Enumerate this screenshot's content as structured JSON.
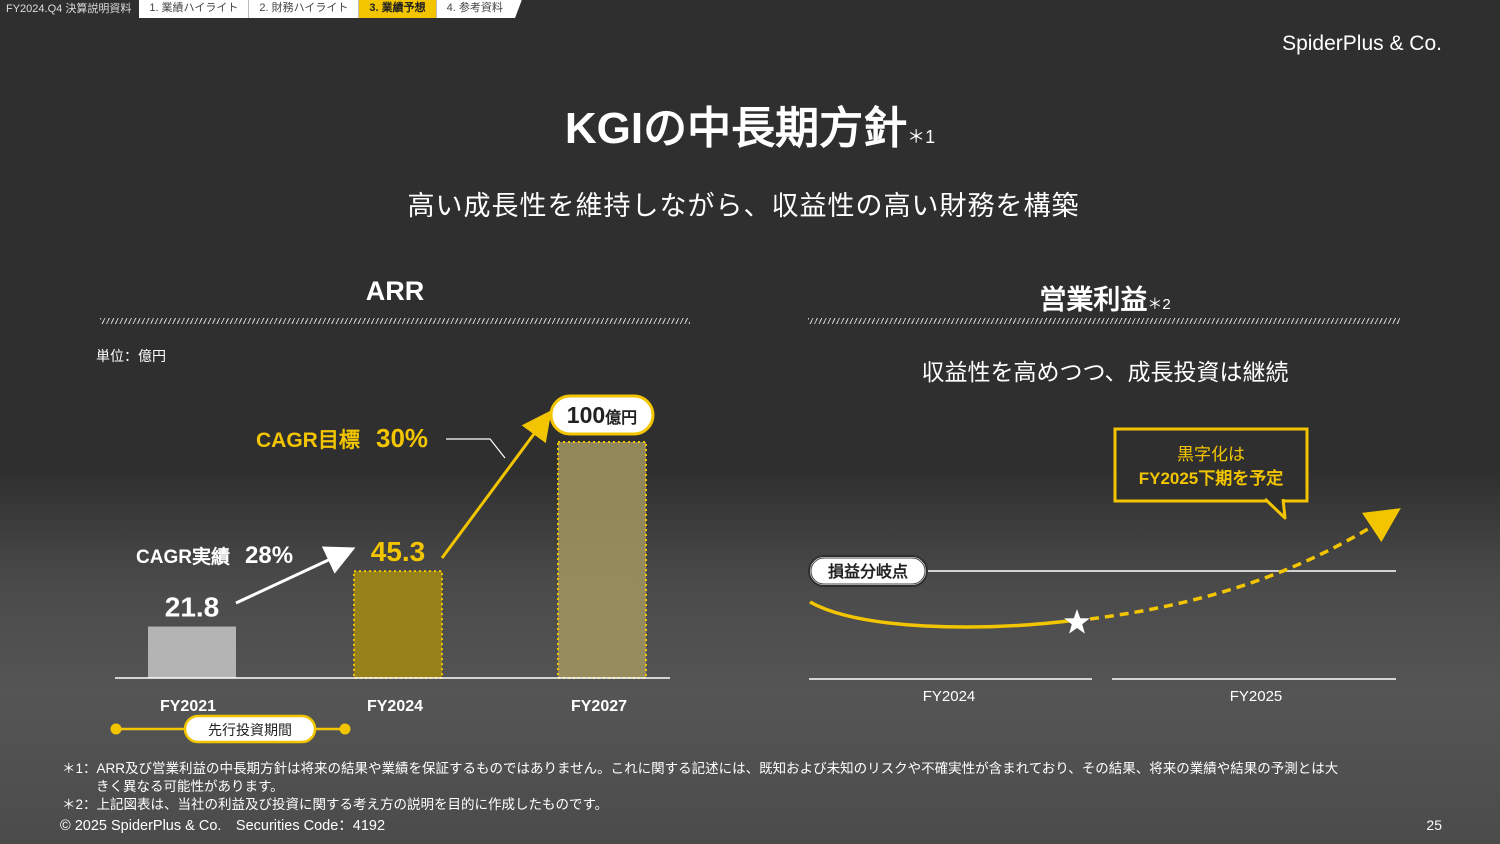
{
  "topbar": {
    "doc_label": "FY2024.Q4 決算説明資料",
    "tabs": [
      "1. 業績ハイライト",
      "2. 財務ハイライト",
      "3. 業績予想",
      "4. 参考資料"
    ],
    "active_tab": 2
  },
  "logo": "SpiderPlus & Co.",
  "title": {
    "main": "KGIの中長期方針",
    "sup": "＊1"
  },
  "subtitle": "高い成長性を維持しながら、収益性の高い財務を構築",
  "arr": {
    "title": "ARR",
    "unit": "単位：億円",
    "cagr_actual_label": "CAGR実績",
    "cagr_actual_value": "28%",
    "cagr_target_label": "CAGR目標",
    "cagr_target_value": "30%",
    "period_label": "先行投資期間"
  },
  "chart_data": {
    "type": "bar",
    "categories": [
      "FY2021",
      "FY2024",
      "FY2027"
    ],
    "values": [
      21.8,
      45.3,
      100
    ],
    "value_labels": [
      "21.8",
      "45.3",
      "100"
    ],
    "last_value_unit": "億円",
    "colors": [
      "#b9b9b9",
      "#9a8418",
      "#a29660"
    ]
  },
  "op": {
    "title": "営業利益",
    "sup": "＊2",
    "subtitle": "収益性を高めつつ、成長投資は継続",
    "callout_line1": "黒字化は",
    "callout_line2": "FY2025下期を予定",
    "breakeven_label": "損益分岐点",
    "x_labels": [
      "FY2024",
      "FY2025"
    ]
  },
  "footnotes": {
    "n1_mark": "＊1：",
    "n1_text1": "ARR及び営業利益の中長期方針は将来の結果や業績を保証するものではありません。これに関する記述には、既知および未知のリスクや不確実性が含まれており、その結果、将来の業績や結果の予測とは大",
    "n1_text2": "きく異なる可能性があります。",
    "n2_mark": "＊2：",
    "n2_text": "上記図表は、当社の利益及び投資に関する考え方の説明を目的に作成したものです。"
  },
  "copyright": "© 2025 SpiderPlus & Co.　Securities Code：4192",
  "page_number": "25",
  "colors": {
    "accent": "#f2c500",
    "background": "#2f2f2f"
  }
}
